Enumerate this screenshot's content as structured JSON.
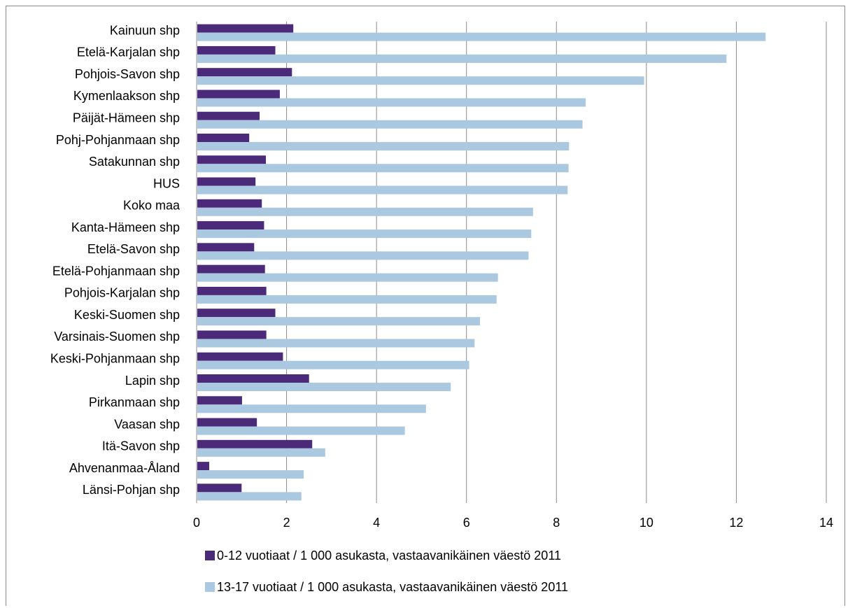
{
  "chart_data": {
    "type": "bar",
    "orientation": "horizontal",
    "categories": [
      "Kainuun shp",
      "Etelä-Karjalan shp",
      "Pohjois-Savon shp",
      "Kymenlaakson shp",
      "Päijät-Hämeen shp",
      "Pohj-Pohjanmaan shp",
      "Satakunnan shp",
      "HUS",
      "Koko maa",
      "Kanta-Hämeen shp",
      "Etelä-Savon shp",
      "Etelä-Pohjanmaan shp",
      "Pohjois-Karjalan shp",
      "Keski-Suomen shp",
      "Varsinais-Suomen shp",
      "Keski-Pohjanmaan shp",
      "Lapin shp",
      "Pirkanmaan shp",
      "Vaasan shp",
      "Itä-Savon shp",
      "Ahvenanmaa-Åland",
      "Länsi-Pohjan shp"
    ],
    "series": [
      {
        "name": "0-12  vuotiaat / 1 000 asukasta, vastaavanikäinen väestö 2011",
        "color": "#4b2a7a",
        "values": [
          2.15,
          1.75,
          2.12,
          1.85,
          1.4,
          1.17,
          1.54,
          1.31,
          1.45,
          1.5,
          1.28,
          1.52,
          1.55,
          1.75,
          1.55,
          1.92,
          2.5,
          1.01,
          1.34,
          2.57,
          0.28,
          1.0
        ]
      },
      {
        "name": "13-17  vuotiaat / 1 000 asukasta, vastaavanikäinen väestö 2011",
        "color": "#aac8e0",
        "values": [
          12.65,
          11.78,
          9.95,
          8.65,
          8.58,
          8.28,
          8.27,
          8.25,
          7.48,
          7.44,
          7.38,
          6.7,
          6.67,
          6.3,
          6.18,
          6.06,
          5.65,
          5.1,
          4.63,
          2.86,
          2.38,
          2.33
        ]
      }
    ],
    "xlim": [
      0,
      14
    ],
    "xticks": [
      "0",
      "2",
      "4",
      "6",
      "8",
      "10",
      "12",
      "14"
    ],
    "grid": true,
    "legend_position": "bottom"
  }
}
